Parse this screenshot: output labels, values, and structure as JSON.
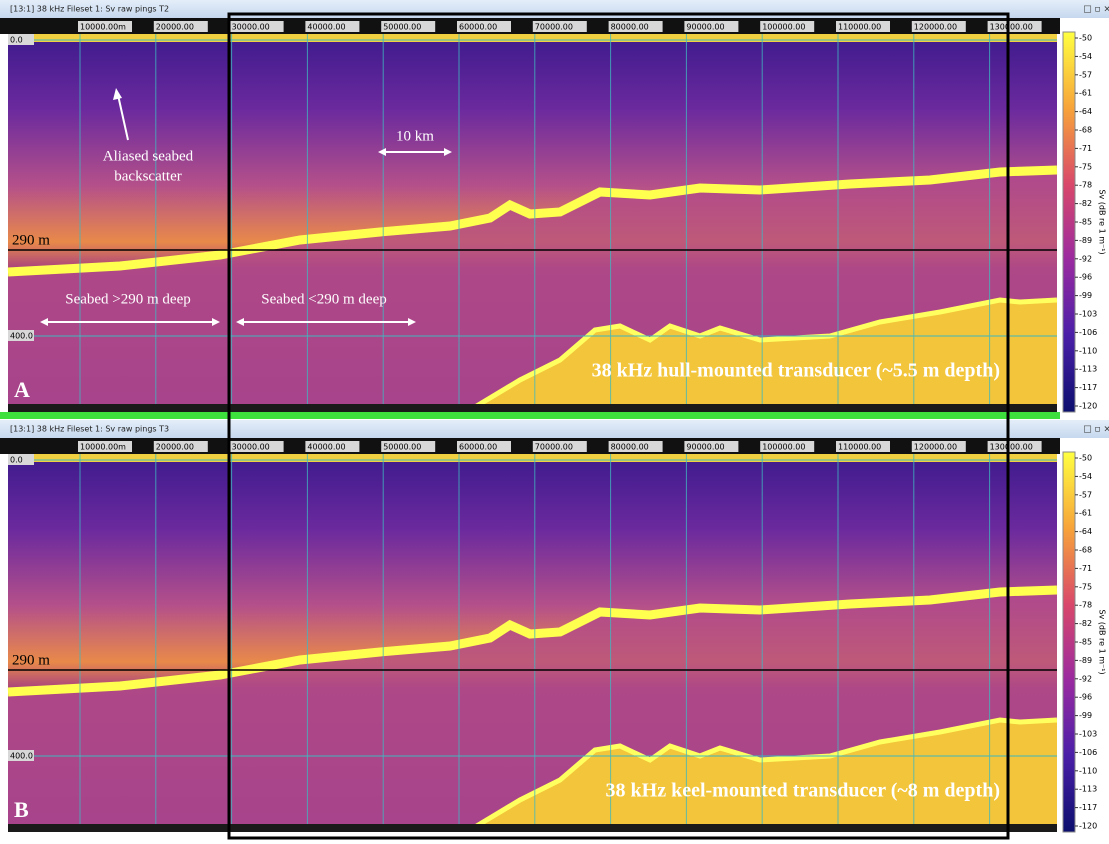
{
  "panels": [
    {
      "window_title": "[13:1] 38 kHz Fileset 1: Sv raw pings T2",
      "x_ruler": [
        "10000.00m",
        "20000.00",
        "30000.00",
        "40000.00",
        "50000.00",
        "60000.00",
        "70000.00",
        "80000.00",
        "90000.00",
        "100000.00",
        "110000.00",
        "120000.00",
        "130000.00"
      ],
      "depth_labels": [
        "0.0",
        "400.0"
      ],
      "line_label": "290 m",
      "panel_letter": "A",
      "transducer_label": "38 kHz hull-mounted transducer (~5.5 m depth)",
      "colorbar": {
        "label": "Sv (dB re 1 m⁻¹)",
        "ticks": [
          -50,
          -54,
          -57,
          -61,
          -64,
          -68,
          -71,
          -75,
          -78,
          -82,
          -85,
          -89,
          -92,
          -96,
          -99,
          -103,
          -106,
          -110,
          -113,
          -117,
          -120
        ]
      },
      "annotations": {
        "aliased": [
          "Aliased seabed",
          "backscatter"
        ],
        "scale": "10 km",
        "deep": "Seabed >290 m deep",
        "shallow": "Seabed <290 m deep"
      }
    },
    {
      "window_title": "[13:1] 38 kHz Fileset 1: Sv raw pings T3",
      "x_ruler": [
        "10000.00m",
        "20000.00",
        "30000.00",
        "40000.00",
        "50000.00",
        "60000.00",
        "70000.00",
        "80000.00",
        "90000.00",
        "100000.00",
        "110000.00",
        "120000.00",
        "130000.00"
      ],
      "depth_labels": [
        "0.0",
        "400.0"
      ],
      "line_label": "290 m",
      "panel_letter": "B",
      "transducer_label": "38 kHz keel-mounted transducer (~8 m depth)",
      "colorbar": {
        "label": "Sv (dB re 1 m⁻¹)",
        "ticks": [
          -50,
          -54,
          -57,
          -61,
          -64,
          -68,
          -71,
          -75,
          -78,
          -82,
          -85,
          -89,
          -92,
          -96,
          -99,
          -103,
          -106,
          -110,
          -113,
          -117,
          -120
        ]
      }
    }
  ]
}
